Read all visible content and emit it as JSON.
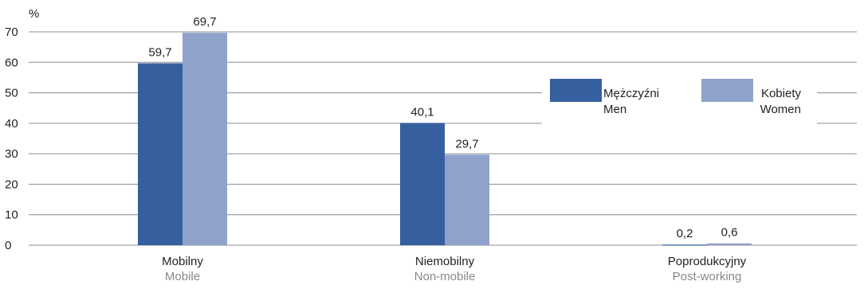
{
  "chart_data": {
    "type": "bar",
    "unit_label": "%",
    "ylim": [
      0,
      70
    ],
    "yticks": [
      "0",
      "10",
      "20",
      "30",
      "40",
      "50",
      "60",
      "70"
    ],
    "grid": true,
    "legend_position": "right",
    "categories": [
      {
        "pl": "Mobilny",
        "en": "Mobile"
      },
      {
        "pl": "Niemobilny",
        "en": "Non-mobile"
      },
      {
        "pl": "Poprodukcyjny",
        "en": "Post-working"
      }
    ],
    "series": [
      {
        "name_pl": "Mężczyźni",
        "name_en": "Men",
        "color": "#365f9f",
        "values": [
          59.7,
          40.1,
          0.2
        ],
        "labels": [
          "59,7",
          "40,1",
          "0,2"
        ]
      },
      {
        "name_pl": "Kobiety",
        "name_en": "Women",
        "color": "#8fa2cc",
        "values": [
          69.7,
          29.7,
          0.6
        ],
        "labels": [
          "69,7",
          "29,7",
          "0,6"
        ]
      }
    ]
  }
}
